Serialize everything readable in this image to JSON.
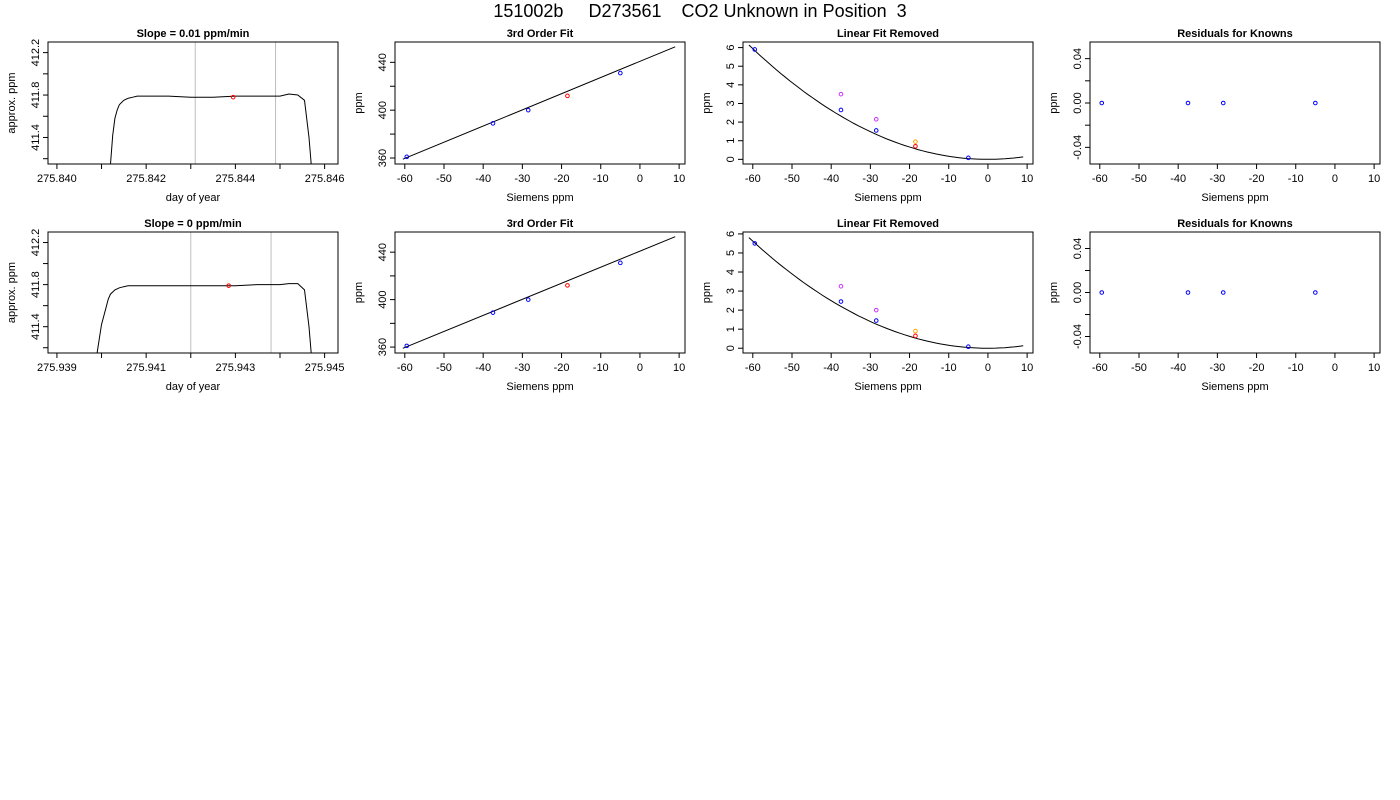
{
  "page_title": "151002b     D273561    CO2 Unknown in Position  3",
  "colors": {
    "trace": "#000000",
    "known_points": "#0000ff",
    "unknown_point": "#ff0000",
    "magenta_points": "#cc33ff",
    "orange_points": "#ffa500",
    "vertical_lines": "#bebebe"
  },
  "chart_data": [
    {
      "type": "line",
      "title": "Slope =  0.01  ppm/min",
      "xlabel": "day of year",
      "ylabel": "approx. ppm",
      "xlim": [
        275.8398,
        275.8463
      ],
      "ylim": [
        411.15,
        412.3
      ],
      "xticks": [
        275.84,
        275.841,
        275.842,
        275.843,
        275.844,
        275.845,
        275.846
      ],
      "xtick_labels": [
        "275.840",
        "",
        "275.842",
        "",
        "275.844",
        "",
        "275.846"
      ],
      "yticks": [
        411.2,
        411.4,
        411.6,
        411.8,
        412.0,
        412.2
      ],
      "ytick_labels": [
        "",
        "411.4",
        "",
        "411.8",
        "",
        "412.2"
      ],
      "vlines": [
        275.8431,
        275.8449
      ],
      "series": [
        {
          "x": [
            275.8412,
            275.84125,
            275.8413,
            275.84135,
            275.8414,
            275.8415,
            275.8416,
            275.8417,
            275.8418,
            275.842,
            275.8425,
            275.843,
            275.8435,
            275.844,
            275.8445,
            275.845,
            275.8452,
            275.8454,
            275.84555,
            275.84565,
            275.8457
          ],
          "y": [
            411.15,
            411.42,
            411.58,
            411.66,
            411.71,
            411.75,
            411.77,
            411.78,
            411.79,
            411.79,
            411.79,
            411.78,
            411.78,
            411.79,
            411.79,
            411.79,
            411.81,
            411.8,
            411.75,
            411.4,
            411.15
          ]
        }
      ],
      "markers": [
        {
          "x": 275.84395,
          "y": 411.78,
          "color": "red"
        }
      ]
    },
    {
      "type": "scatter",
      "title": "3rd Order Fit",
      "xlabel": "Siemens ppm",
      "ylabel": "ppm",
      "xlim": [
        -62.5,
        11.5
      ],
      "ylim": [
        355,
        457
      ],
      "xticks": [
        -60,
        -50,
        -40,
        -30,
        -20,
        -10,
        0,
        10
      ],
      "xtick_labels": [
        "-60",
        "-50",
        "-40",
        "-30",
        "-20",
        "-10",
        "0",
        "10"
      ],
      "yticks": [
        360,
        380,
        400,
        420,
        440
      ],
      "ytick_labels": [
        "360",
        "",
        "400",
        "",
        "440"
      ],
      "curve": {
        "x": [
          -60.5,
          9
        ],
        "y": [
          359,
          453
        ]
      },
      "points": [
        {
          "x": -59.5,
          "y": 361,
          "color": "blue"
        },
        {
          "x": -37.5,
          "y": 389,
          "color": "blue"
        },
        {
          "x": -28.5,
          "y": 400,
          "color": "blue"
        },
        {
          "x": -18.5,
          "y": 412,
          "color": "red"
        },
        {
          "x": -5,
          "y": 431,
          "color": "blue"
        }
      ]
    },
    {
      "type": "scatter",
      "title": "Linear Fit Removed",
      "xlabel": "Siemens ppm",
      "ylabel": "ppm",
      "xlim": [
        -62.5,
        11.5
      ],
      "ylim": [
        -0.25,
        6.3
      ],
      "xticks": [
        -60,
        -50,
        -40,
        -30,
        -20,
        -10,
        0,
        10
      ],
      "xtick_labels": [
        "-60",
        "-50",
        "-40",
        "-30",
        "-20",
        "-10",
        "0",
        "10"
      ],
      "yticks": [
        0,
        1,
        2,
        3,
        4,
        5,
        6
      ],
      "ytick_labels": [
        "0",
        "1",
        "2",
        "3",
        "4",
        "5",
        "6"
      ],
      "curve": {
        "vertex": 0,
        "a": 0.00165,
        "from": -61,
        "to": 9
      },
      "points": [
        {
          "x": -59.5,
          "y": 5.9,
          "color": "blue"
        },
        {
          "x": -37.5,
          "y": 2.65,
          "color": "blue"
        },
        {
          "x": -28.5,
          "y": 1.55,
          "color": "blue"
        },
        {
          "x": -5,
          "y": 0.08,
          "color": "blue"
        },
        {
          "x": -18.5,
          "y": 0.7,
          "color": "red"
        },
        {
          "x": -37.5,
          "y": 3.5,
          "color": "magenta"
        },
        {
          "x": -28.5,
          "y": 2.15,
          "color": "magenta"
        },
        {
          "x": -18.5,
          "y": 0.95,
          "color": "orange"
        }
      ]
    },
    {
      "type": "scatter",
      "title": "Residuals for Knowns",
      "xlabel": "Siemens ppm",
      "ylabel": "ppm",
      "xlim": [
        -62.5,
        11.5
      ],
      "ylim": [
        -0.055,
        0.055
      ],
      "xticks": [
        -60,
        -50,
        -40,
        -30,
        -20,
        -10,
        0,
        10
      ],
      "xtick_labels": [
        "-60",
        "-50",
        "-40",
        "-30",
        "-20",
        "-10",
        "0",
        "10"
      ],
      "yticks": [
        -0.04,
        -0.02,
        0.0,
        0.02,
        0.04
      ],
      "ytick_labels": [
        "-0.04",
        "",
        "0.00",
        "",
        "0.04"
      ],
      "points": [
        {
          "x": -59.5,
          "y": 0,
          "color": "blue"
        },
        {
          "x": -37.5,
          "y": 0,
          "color": "blue"
        },
        {
          "x": -28.5,
          "y": 0,
          "color": "blue"
        },
        {
          "x": -5,
          "y": 0,
          "color": "blue"
        }
      ]
    },
    {
      "type": "line",
      "title": "Slope =  0  ppm/min",
      "xlabel": "day of year",
      "ylabel": "approx. ppm",
      "xlim": [
        275.9388,
        275.9453
      ],
      "ylim": [
        411.15,
        412.3
      ],
      "xticks": [
        275.939,
        275.94,
        275.941,
        275.942,
        275.943,
        275.944,
        275.945
      ],
      "xtick_labels": [
        "275.939",
        "",
        "275.941",
        "",
        "275.943",
        "",
        "275.945"
      ],
      "yticks": [
        411.2,
        411.4,
        411.6,
        411.8,
        412.0,
        412.2
      ],
      "ytick_labels": [
        "",
        "411.4",
        "",
        "411.8",
        "",
        "412.2"
      ],
      "vlines": [
        275.942,
        275.9438
      ],
      "series": [
        {
          "x": [
            275.9399,
            275.94,
            275.9401,
            275.94015,
            275.9402,
            275.9403,
            275.9404,
            275.9405,
            275.9406,
            275.941,
            275.9415,
            275.942,
            275.9425,
            275.943,
            275.9435,
            275.944,
            275.9442,
            275.9444,
            275.94455,
            275.94465,
            275.9447
          ],
          "y": [
            411.15,
            411.42,
            411.58,
            411.66,
            411.71,
            411.75,
            411.77,
            411.78,
            411.79,
            411.79,
            411.79,
            411.79,
            411.79,
            411.79,
            411.8,
            411.8,
            411.81,
            411.81,
            411.75,
            411.4,
            411.15
          ]
        }
      ],
      "markers": [
        {
          "x": 275.94285,
          "y": 411.79,
          "color": "red"
        }
      ]
    },
    {
      "type": "scatter",
      "title": "3rd Order Fit",
      "xlabel": "Siemens ppm",
      "ylabel": "ppm",
      "xlim": [
        -62.5,
        11.5
      ],
      "ylim": [
        355,
        457
      ],
      "xticks": [
        -60,
        -50,
        -40,
        -30,
        -20,
        -10,
        0,
        10
      ],
      "xtick_labels": [
        "-60",
        "-50",
        "-40",
        "-30",
        "-20",
        "-10",
        "0",
        "10"
      ],
      "yticks": [
        360,
        380,
        400,
        420,
        440
      ],
      "ytick_labels": [
        "360",
        "",
        "400",
        "",
        "440"
      ],
      "curve": {
        "x": [
          -60.5,
          9
        ],
        "y": [
          359,
          453
        ]
      },
      "points": [
        {
          "x": -59.5,
          "y": 361,
          "color": "blue"
        },
        {
          "x": -37.5,
          "y": 389,
          "color": "blue"
        },
        {
          "x": -28.5,
          "y": 400,
          "color": "blue"
        },
        {
          "x": -18.5,
          "y": 412,
          "color": "red"
        },
        {
          "x": -5,
          "y": 431,
          "color": "blue"
        }
      ]
    },
    {
      "type": "scatter",
      "title": "Linear Fit Removed",
      "xlabel": "Siemens ppm",
      "ylabel": "ppm",
      "xlim": [
        -62.5,
        11.5
      ],
      "ylim": [
        -0.25,
        6.1
      ],
      "xticks": [
        -60,
        -50,
        -40,
        -30,
        -20,
        -10,
        0,
        10
      ],
      "xtick_labels": [
        "-60",
        "-50",
        "-40",
        "-30",
        "-20",
        "-10",
        "0",
        "10"
      ],
      "yticks": [
        0,
        1,
        2,
        3,
        4,
        5,
        6
      ],
      "ytick_labels": [
        "0",
        "1",
        "2",
        "3",
        "4",
        "5",
        "6"
      ],
      "curve": {
        "vertex": 0,
        "a": 0.00156,
        "from": -61,
        "to": 9
      },
      "points": [
        {
          "x": -59.5,
          "y": 5.5,
          "color": "blue"
        },
        {
          "x": -37.5,
          "y": 2.45,
          "color": "blue"
        },
        {
          "x": -28.5,
          "y": 1.45,
          "color": "blue"
        },
        {
          "x": -5,
          "y": 0.08,
          "color": "blue"
        },
        {
          "x": -18.5,
          "y": 0.65,
          "color": "red"
        },
        {
          "x": -37.5,
          "y": 3.25,
          "color": "magenta"
        },
        {
          "x": -28.5,
          "y": 2.0,
          "color": "magenta"
        },
        {
          "x": -18.5,
          "y": 0.9,
          "color": "orange"
        }
      ]
    },
    {
      "type": "scatter",
      "title": "Residuals for Knowns",
      "xlabel": "Siemens ppm",
      "ylabel": "ppm",
      "xlim": [
        -62.5,
        11.5
      ],
      "ylim": [
        -0.055,
        0.055
      ],
      "xticks": [
        -60,
        -50,
        -40,
        -30,
        -20,
        -10,
        0,
        10
      ],
      "xtick_labels": [
        "-60",
        "-50",
        "-40",
        "-30",
        "-20",
        "-10",
        "0",
        "10"
      ],
      "yticks": [
        -0.04,
        -0.02,
        0.0,
        0.02,
        0.04
      ],
      "ytick_labels": [
        "-0.04",
        "",
        "0.00",
        "",
        "0.04"
      ],
      "points": [
        {
          "x": -59.5,
          "y": 0,
          "color": "blue"
        },
        {
          "x": -37.5,
          "y": 0,
          "color": "blue"
        },
        {
          "x": -28.5,
          "y": 0,
          "color": "blue"
        },
        {
          "x": -5,
          "y": 0,
          "color": "blue"
        }
      ]
    }
  ]
}
